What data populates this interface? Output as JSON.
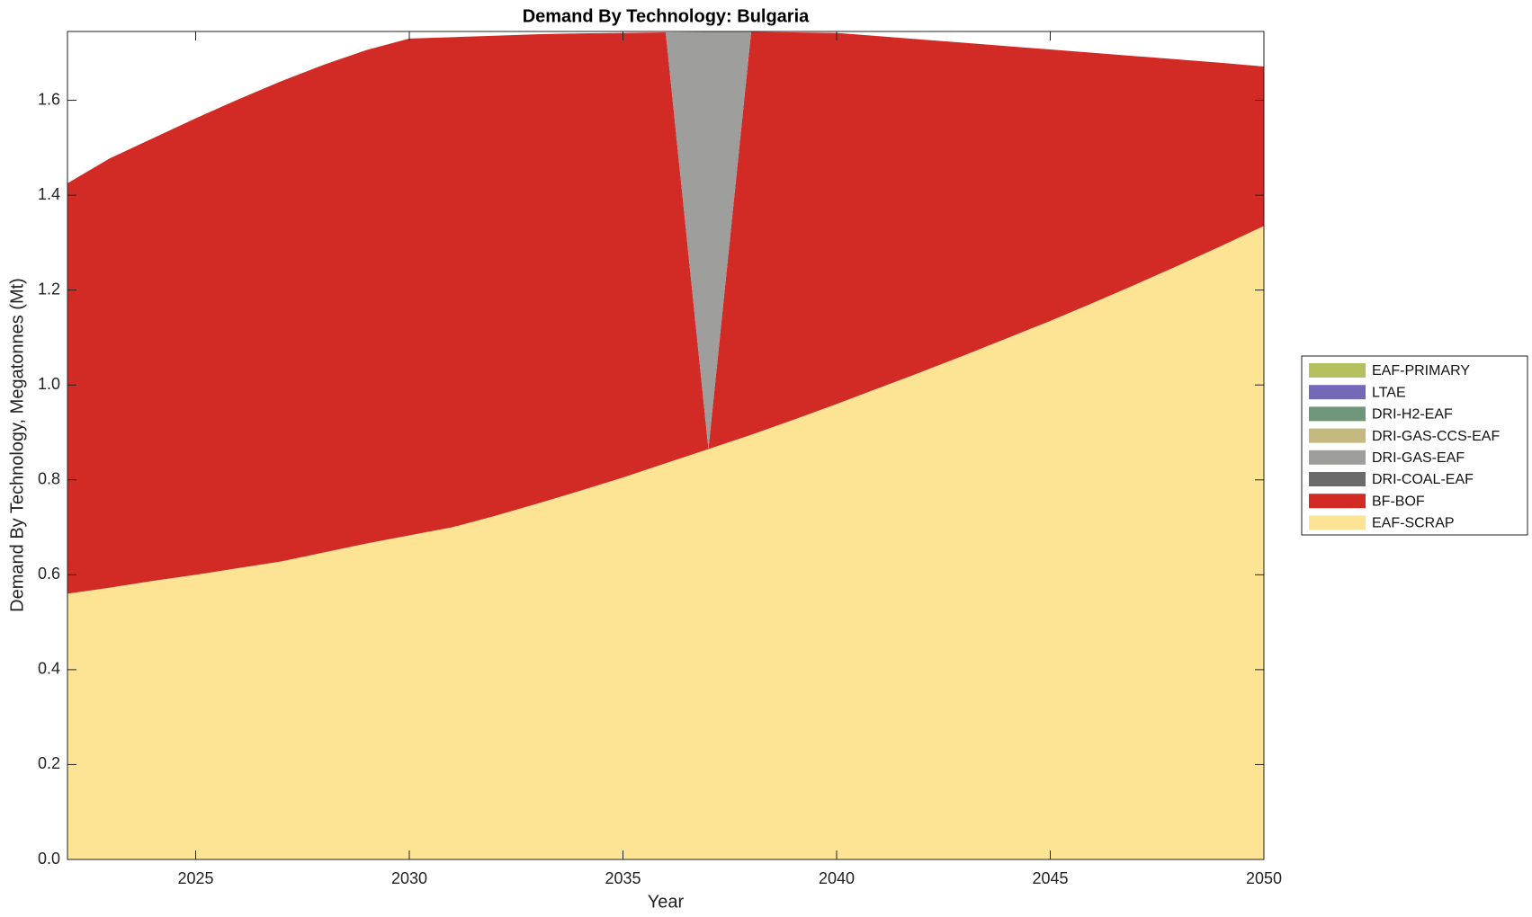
{
  "chart_data": {
    "type": "area",
    "stacked": true,
    "title": "Demand By Technology: Bulgaria",
    "x_label": "Year",
    "y_label": "Demand By Technology, Megatonnes (Mt)",
    "x": [
      2022,
      2023,
      2024,
      2025,
      2026,
      2027,
      2028,
      2029,
      2030,
      2031,
      2032,
      2033,
      2034,
      2035,
      2036,
      2037,
      2038,
      2039,
      2040,
      2041,
      2042,
      2043,
      2044,
      2045,
      2046,
      2047,
      2048,
      2049,
      2050
    ],
    "xlim": [
      2022,
      2050
    ],
    "xticks": [
      2025,
      2030,
      2035,
      2040,
      2045,
      2050
    ],
    "ylim": [
      0,
      1.745
    ],
    "yticks": [
      {
        "value": 0,
        "label": "0.0"
      },
      0.2,
      0.4,
      0.6,
      0.8,
      {
        "value": 1,
        "label": "1.0"
      },
      1.2,
      1.4,
      1.6
    ],
    "grid": false,
    "legend": "right",
    "series": [
      {
        "name": "EAF-SCRAP",
        "color": "#fde394",
        "values": [
          0.56,
          0.573,
          0.587,
          0.6,
          0.614,
          0.628,
          0.647,
          0.666,
          0.683,
          0.7,
          0.724,
          0.75,
          0.777,
          0.805,
          0.835,
          0.865,
          0.895,
          0.927,
          0.96,
          0.994,
          1.028,
          1.063,
          1.099,
          1.135,
          1.173,
          1.212,
          1.252,
          1.293,
          1.335
        ]
      },
      {
        "name": "BF-BOF",
        "color": "#d22b25",
        "values": [
          0.865,
          0.905,
          0.933,
          0.962,
          0.988,
          1.012,
          1.028,
          1.04,
          1.047,
          1.033,
          1.012,
          0.989,
          0.964,
          0.937,
          0.908,
          0,
          0.849,
          0.816,
          0.782,
          0.741,
          0.7,
          0.658,
          0.615,
          0.572,
          0.527,
          0.481,
          0.434,
          0.386,
          0.336
        ]
      },
      {
        "name": "DRI-COAL-EAF",
        "color": "#6b6b6b",
        "values": [
          0,
          0,
          0,
          0,
          0,
          0,
          0,
          0,
          0,
          0,
          0,
          0,
          0,
          0,
          0,
          0,
          0,
          0,
          0,
          0,
          0,
          0,
          0,
          0,
          0,
          0,
          0,
          0,
          0
        ]
      },
      {
        "name": "DRI-GAS-EAF",
        "color": "#9e9e9c",
        "values": [
          0,
          0,
          0,
          0,
          0,
          0,
          0,
          0,
          0,
          0,
          0,
          0,
          0,
          0,
          0,
          0.879,
          0,
          0,
          0,
          0,
          0,
          0,
          0,
          0,
          0,
          0,
          0,
          0,
          0
        ]
      },
      {
        "name": "DRI-GAS-CCS-EAF",
        "color": "#c4b97e",
        "values": [
          0,
          0,
          0,
          0,
          0,
          0,
          0,
          0,
          0,
          0,
          0,
          0,
          0,
          0,
          0,
          0,
          0,
          0,
          0,
          0,
          0,
          0,
          0,
          0,
          0,
          0,
          0,
          0,
          0
        ]
      },
      {
        "name": "DRI-H2-EAF",
        "color": "#6f957a",
        "values": [
          0,
          0,
          0,
          0,
          0,
          0,
          0,
          0,
          0,
          0,
          0,
          0,
          0,
          0,
          0,
          0,
          0,
          0,
          0,
          0,
          0,
          0,
          0,
          0,
          0,
          0,
          0,
          0,
          0
        ]
      },
      {
        "name": "LTAE",
        "color": "#7468b8",
        "values": [
          0,
          0,
          0,
          0,
          0,
          0,
          0,
          0,
          0,
          0,
          0,
          0,
          0,
          0,
          0,
          0,
          0,
          0,
          0,
          0,
          0,
          0,
          0,
          0,
          0,
          0,
          0,
          0,
          0
        ]
      },
      {
        "name": "EAF-PRIMARY",
        "color": "#b5c15f",
        "values": [
          0,
          0,
          0,
          0,
          0,
          0,
          0,
          0,
          0,
          0,
          0,
          0,
          0,
          0,
          0,
          0,
          0,
          0,
          0,
          0,
          0,
          0,
          0,
          0,
          0,
          0,
          0,
          0,
          0
        ]
      }
    ]
  }
}
